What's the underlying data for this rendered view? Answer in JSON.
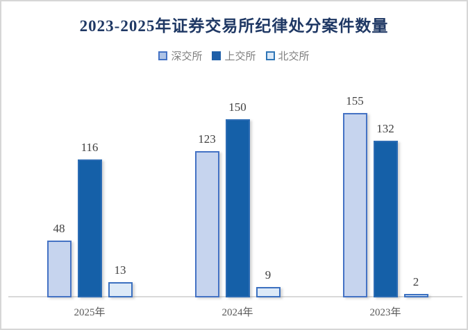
{
  "chart_data": {
    "type": "bar",
    "title": "2023-2025年证券交易所纪律处分案件数量",
    "categories": [
      "2025年",
      "2024年",
      "2023年"
    ],
    "series": [
      {
        "key": "szse",
        "name": "深交所",
        "values": [
          48,
          123,
          155
        ],
        "fill": "#c6d4ee",
        "border": "#4472c4",
        "legend_fill": "#aec3e6",
        "legend_border": "#4472c4"
      },
      {
        "key": "sse",
        "name": "上交所",
        "values": [
          116,
          150,
          132
        ],
        "fill": "#1560a8",
        "border": "#2c6cb4",
        "legend_fill": "#1f5fa8",
        "legend_border": "#1f5fa8"
      },
      {
        "key": "bse",
        "name": "北交所",
        "values": [
          13,
          9,
          2
        ],
        "fill": "#dce9f7",
        "border": "#3b70c0",
        "legend_fill": "#dbe9f8",
        "legend_border": "#2e75b6"
      }
    ],
    "xlabel": "",
    "ylabel": "",
    "ylim": [
      0,
      160
    ],
    "grid": false,
    "legend_position": "top",
    "data_labels": true
  },
  "colors": {
    "title_text": "#1f3864",
    "data_label_text": "#404040",
    "axis_label_text": "#595959",
    "legend_text": "#7f7f7f",
    "axis_line": "#d9d9d9",
    "background": "#ffffff",
    "frame_border": "#d6d6d6"
  }
}
